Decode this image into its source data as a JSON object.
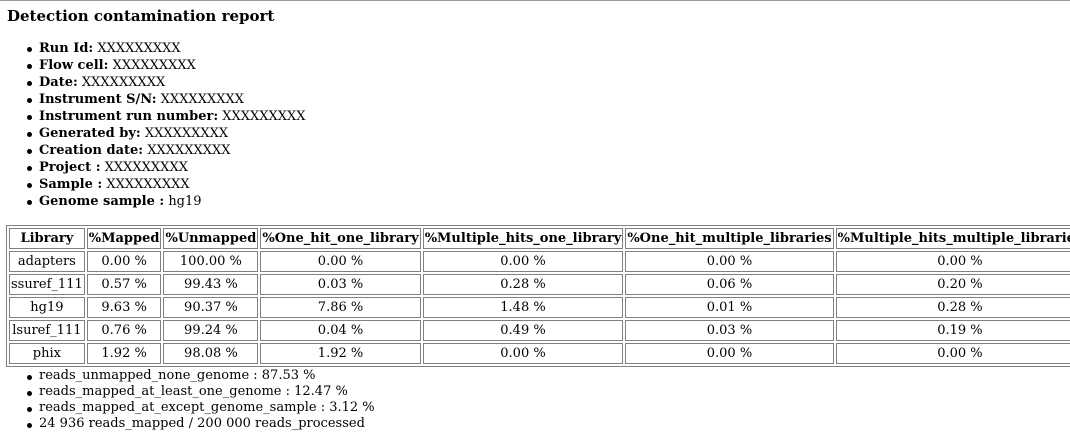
{
  "title": "Detection contamination report",
  "metadata": [
    {
      "label": "Run Id:",
      "value": "XXXXXXXXX"
    },
    {
      "label": "Flow cell:",
      "value": "XXXXXXXXX"
    },
    {
      "label": "Date:",
      "value": "XXXXXXXXX"
    },
    {
      "label": "Instrument S/N:",
      "value": "XXXXXXXXX"
    },
    {
      "label": "Instrument run number:",
      "value": "XXXXXXXXX"
    },
    {
      "label": "Generated by:",
      "value": "XXXXXXXXX"
    },
    {
      "label": "Creation date:",
      "value": "XXXXXXXXX"
    },
    {
      "label": "Project :",
      "value": "XXXXXXXXX"
    },
    {
      "label": "Sample :",
      "value": "XXXXXXXXX"
    },
    {
      "label": "Genome sample :",
      "value": "hg19"
    }
  ],
  "table": {
    "headers": [
      "Library",
      "%Mapped",
      "%Unmapped",
      "%One_hit_one_library",
      "%Multiple_hits_one_library",
      "%One_hit_multiple_libraries",
      "%Multiple_hits_multiple_libraries"
    ],
    "rows": [
      [
        "adapters",
        "0.00 %",
        "100.00 %",
        "0.00 %",
        "0.00 %",
        "0.00 %",
        "0.00 %"
      ],
      [
        "ssuref_111",
        "0.57 %",
        "99.43 %",
        "0.03 %",
        "0.28 %",
        "0.06 %",
        "0.20 %"
      ],
      [
        "hg19",
        "9.63 %",
        "90.37 %",
        "7.86 %",
        "1.48 %",
        "0.01 %",
        "0.28 %"
      ],
      [
        "lsuref_111",
        "0.76 %",
        "99.24 %",
        "0.04 %",
        "0.49 %",
        "0.03 %",
        "0.19 %"
      ],
      [
        "phix",
        "1.92 %",
        "98.08 %",
        "1.92 %",
        "0.00 %",
        "0.00 %",
        "0.00 %"
      ]
    ]
  },
  "stats": [
    "reads_unmapped_none_genome : 87.53 %",
    "reads_mapped_at_least_one_genome : 12.47 %",
    "reads_mapped_at_except_genome_sample : 3.12 %",
    "24 936  reads_mapped / 200 000  reads_processed"
  ]
}
